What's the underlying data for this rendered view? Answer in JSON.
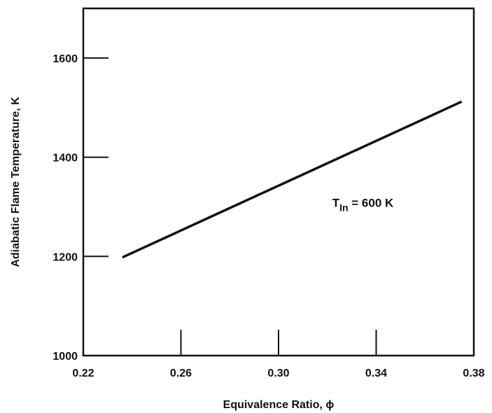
{
  "chart_data": {
    "type": "line",
    "xlabel": "Equivalence Ratio, ϕ",
    "ylabel": "Adiabatic Flame Temperature, K",
    "xlim": [
      0.22,
      0.38
    ],
    "ylim": [
      1000,
      1700
    ],
    "x_ticks": [
      "0.22",
      "0.26",
      "0.30",
      "0.34",
      "0.38"
    ],
    "y_ticks": [
      "1000",
      "1200",
      "1400",
      "1600"
    ],
    "grid": false,
    "series": [
      {
        "x": [
          0.236,
          0.375
        ],
        "y": [
          1198,
          1512
        ]
      }
    ],
    "annotation": {
      "main": "T",
      "subscript": "In",
      "rest": " = 600 K",
      "x": 0.322,
      "y": 1300
    }
  }
}
